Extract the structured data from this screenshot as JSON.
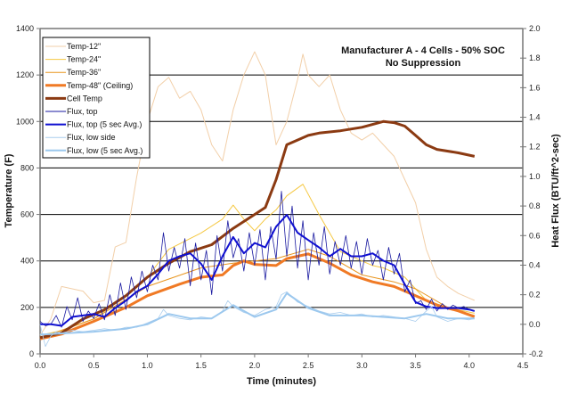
{
  "chart_data": {
    "type": "line",
    "title": "Manufacturer A - 4 Cells - 50% SOC",
    "subtitle": "No Suppression",
    "xlabel": "Time (minutes)",
    "ylabel": "Temperature (F)",
    "y2label": "Heat Flux (BTU/ft^2-sec)",
    "xlim": [
      0,
      4.5
    ],
    "ylim": [
      0,
      1400
    ],
    "y2lim": [
      -0.2,
      2.0
    ],
    "xticks": [
      "0.0",
      "0.5",
      "1.0",
      "1.5",
      "2.0",
      "2.5",
      "3.0",
      "3.5",
      "4.0",
      "4.5"
    ],
    "yticks": [
      "0",
      "200",
      "400",
      "600",
      "800",
      "1000",
      "1200",
      "1400"
    ],
    "y2ticks": [
      "-0.2",
      "0.0",
      "0.2",
      "0.4",
      "0.6",
      "0.8",
      "1.0",
      "1.2",
      "1.4",
      "1.6",
      "1.8",
      "2.0"
    ],
    "grid": "horizontal",
    "legend_position": "top-left",
    "series": [
      {
        "name": "Temp-12\"",
        "axis": "left",
        "color": "#f2cfa8",
        "width": 1,
        "x": [
          0,
          0.1,
          0.2,
          0.3,
          0.4,
          0.5,
          0.6,
          0.7,
          0.8,
          0.9,
          1.0,
          1.1,
          1.2,
          1.3,
          1.4,
          1.5,
          1.6,
          1.7,
          1.8,
          1.9,
          2.0,
          2.1,
          2.2,
          2.3,
          2.4,
          2.45,
          2.5,
          2.6,
          2.7,
          2.8,
          2.9,
          3.0,
          3.1,
          3.2,
          3.3,
          3.4,
          3.5,
          3.6,
          3.7,
          3.8,
          3.9,
          4.0,
          4.05
        ],
        "y": [
          80,
          150,
          290,
          280,
          270,
          220,
          230,
          460,
          480,
          760,
          1000,
          1150,
          1190,
          1100,
          1130,
          1050,
          900,
          830,
          1050,
          1200,
          1300,
          1200,
          900,
          1000,
          1180,
          1290,
          1200,
          1150,
          1200,
          1050,
          950,
          920,
          950,
          900,
          850,
          750,
          650,
          450,
          330,
          290,
          260,
          240,
          230
        ]
      },
      {
        "name": "Temp-24\"",
        "axis": "left",
        "color": "#f5c842",
        "width": 1,
        "x": [
          0,
          0.2,
          0.5,
          0.8,
          1.0,
          1.2,
          1.5,
          1.7,
          1.8,
          1.9,
          2.0,
          2.1,
          2.2,
          2.3,
          2.45,
          2.6,
          2.7,
          2.8,
          3.0,
          3.1,
          3.2,
          3.4,
          3.6,
          3.8,
          4.0,
          4.05
        ],
        "y": [
          80,
          100,
          150,
          250,
          330,
          450,
          520,
          580,
          640,
          580,
          530,
          580,
          620,
          680,
          730,
          600,
          520,
          440,
          400,
          380,
          370,
          330,
          230,
          200,
          180,
          175
        ]
      },
      {
        "name": "Temp-36\"",
        "axis": "left",
        "color": "#e8951e",
        "width": 1,
        "x": [
          0,
          0.5,
          1.0,
          1.5,
          1.8,
          2.0,
          2.2,
          2.5,
          2.7,
          3.0,
          3.3,
          3.5,
          3.8,
          4.05
        ],
        "y": [
          70,
          150,
          290,
          370,
          390,
          400,
          410,
          450,
          420,
          340,
          310,
          280,
          200,
          165
        ]
      },
      {
        "name": "Temp-48\" (Ceiling)",
        "axis": "left",
        "color": "#f07a25",
        "width": 3,
        "x": [
          0,
          0.2,
          0.5,
          0.8,
          1.0,
          1.3,
          1.5,
          1.7,
          1.8,
          1.9,
          2.0,
          2.2,
          2.3,
          2.5,
          2.7,
          2.9,
          3.1,
          3.3,
          3.5,
          3.7,
          3.9,
          4.05
        ],
        "y": [
          65,
          85,
          140,
          200,
          250,
          300,
          330,
          340,
          380,
          400,
          385,
          380,
          410,
          430,
          390,
          340,
          310,
          290,
          250,
          210,
          185,
          160
        ]
      },
      {
        "name": "Cell Temp",
        "axis": "left",
        "color": "#8b3a12",
        "width": 3,
        "x": [
          0,
          0.2,
          0.4,
          0.6,
          0.8,
          1.0,
          1.2,
          1.4,
          1.6,
          1.8,
          2.0,
          2.1,
          2.2,
          2.3,
          2.4,
          2.5,
          2.6,
          2.8,
          3.0,
          3.2,
          3.3,
          3.4,
          3.5,
          3.6,
          3.7,
          3.9,
          4.05
        ],
        "y": [
          70,
          90,
          150,
          190,
          250,
          330,
          390,
          440,
          470,
          540,
          600,
          630,
          750,
          900,
          920,
          940,
          950,
          960,
          975,
          1000,
          995,
          980,
          940,
          900,
          880,
          865,
          850
        ]
      },
      {
        "name": "Flux, top",
        "axis": "right",
        "color": "#1a1aa0",
        "width": 0.8,
        "x": [
          0,
          0.05,
          0.1,
          0.15,
          0.2,
          0.25,
          0.3,
          0.35,
          0.4,
          0.45,
          0.5,
          0.55,
          0.6,
          0.65,
          0.7,
          0.75,
          0.8,
          0.85,
          0.9,
          0.95,
          1.0,
          1.05,
          1.1,
          1.15,
          1.2,
          1.25,
          1.3,
          1.35,
          1.4,
          1.45,
          1.5,
          1.55,
          1.6,
          1.65,
          1.7,
          1.75,
          1.8,
          1.85,
          1.9,
          1.95,
          2.0,
          2.05,
          2.1,
          2.15,
          2.2,
          2.25,
          2.3,
          2.35,
          2.4,
          2.45,
          2.5,
          2.55,
          2.6,
          2.65,
          2.7,
          2.75,
          2.8,
          2.85,
          2.9,
          2.95,
          3.0,
          3.05,
          3.1,
          3.15,
          3.2,
          3.25,
          3.3,
          3.35,
          3.4,
          3.45,
          3.5,
          3.55,
          3.6,
          3.65,
          3.7,
          3.75,
          3.8,
          3.85,
          3.9,
          3.95,
          4.0,
          4.05
        ],
        "y": [
          0.02,
          -0.01,
          0.0,
          0.06,
          -0.02,
          0.12,
          0.03,
          0.18,
          0.02,
          0.09,
          0.04,
          0.14,
          0.03,
          0.2,
          0.06,
          0.28,
          0.1,
          0.32,
          0.18,
          0.36,
          0.22,
          0.4,
          0.3,
          0.62,
          0.36,
          0.52,
          0.38,
          0.58,
          0.26,
          0.55,
          0.3,
          0.5,
          0.2,
          0.6,
          0.36,
          0.7,
          0.45,
          0.58,
          0.36,
          0.62,
          0.4,
          0.64,
          0.3,
          0.66,
          0.44,
          0.9,
          0.46,
          0.8,
          0.38,
          0.7,
          0.3,
          0.62,
          0.4,
          0.66,
          0.34,
          0.56,
          0.4,
          0.6,
          0.38,
          0.56,
          0.34,
          0.58,
          0.4,
          0.5,
          0.3,
          0.52,
          0.34,
          0.48,
          0.22,
          0.3,
          0.14,
          0.16,
          0.1,
          0.17,
          0.09,
          0.14,
          0.1,
          0.13,
          0.11,
          0.12,
          0.1,
          0.09
        ]
      },
      {
        "name": "Flux, top (5 sec Avg.)",
        "axis": "right",
        "color": "#1010d0",
        "width": 2,
        "x": [
          0,
          0.1,
          0.2,
          0.3,
          0.4,
          0.5,
          0.6,
          0.7,
          0.8,
          0.9,
          1.0,
          1.1,
          1.2,
          1.3,
          1.4,
          1.5,
          1.6,
          1.7,
          1.8,
          1.9,
          2.0,
          2.1,
          2.2,
          2.3,
          2.4,
          2.5,
          2.6,
          2.7,
          2.8,
          2.9,
          3.0,
          3.1,
          3.2,
          3.3,
          3.4,
          3.5,
          3.6,
          3.7,
          3.8,
          3.9,
          4.0,
          4.05
        ],
        "y": [
          0.0,
          0.0,
          -0.01,
          0.05,
          0.06,
          0.07,
          0.05,
          0.11,
          0.16,
          0.22,
          0.26,
          0.34,
          0.43,
          0.46,
          0.48,
          0.41,
          0.3,
          0.46,
          0.59,
          0.48,
          0.55,
          0.52,
          0.66,
          0.74,
          0.62,
          0.57,
          0.52,
          0.46,
          0.51,
          0.46,
          0.46,
          0.48,
          0.43,
          0.4,
          0.27,
          0.15,
          0.12,
          0.11,
          0.11,
          0.11,
          0.1,
          0.09
        ]
      },
      {
        "name": "Flux, low side",
        "axis": "right",
        "color": "#a9cdee",
        "width": 0.8,
        "x": [
          0,
          0.05,
          0.1,
          0.15,
          0.2,
          0.3,
          0.4,
          0.5,
          0.6,
          0.7,
          0.8,
          0.9,
          1.0,
          1.1,
          1.15,
          1.2,
          1.3,
          1.4,
          1.5,
          1.6,
          1.7,
          1.75,
          1.8,
          1.9,
          2.0,
          2.1,
          2.2,
          2.25,
          2.3,
          2.4,
          2.5,
          2.6,
          2.7,
          2.8,
          2.9,
          3.0,
          3.1,
          3.2,
          3.3,
          3.4,
          3.5,
          3.6,
          3.65,
          3.7,
          3.8,
          3.9,
          4.0,
          4.05
        ],
        "y": [
          0.0,
          -0.15,
          -0.08,
          -0.05,
          -0.06,
          -0.04,
          -0.05,
          -0.04,
          -0.03,
          -0.04,
          -0.02,
          -0.02,
          0.01,
          0.04,
          0.1,
          0.06,
          0.04,
          0.03,
          0.05,
          0.04,
          0.09,
          0.16,
          0.12,
          0.08,
          0.06,
          0.1,
          0.12,
          0.2,
          0.22,
          0.15,
          0.12,
          0.09,
          0.07,
          0.08,
          0.06,
          0.07,
          0.05,
          0.06,
          0.05,
          0.04,
          0.02,
          0.09,
          0.12,
          0.05,
          0.02,
          0.04,
          0.03,
          0.04
        ]
      },
      {
        "name": "Flux, low (5 sec Avg.)",
        "axis": "right",
        "color": "#9cc8ee",
        "width": 2,
        "x": [
          0,
          0.5,
          0.8,
          1.0,
          1.2,
          1.4,
          1.6,
          1.8,
          2.0,
          2.2,
          2.3,
          2.5,
          2.7,
          3.0,
          3.4,
          3.6,
          3.8,
          4.05
        ],
        "y": [
          -0.07,
          -0.05,
          -0.03,
          0.0,
          0.07,
          0.04,
          0.04,
          0.13,
          0.05,
          0.1,
          0.21,
          0.11,
          0.06,
          0.06,
          0.04,
          0.07,
          0.04,
          0.04
        ]
      }
    ]
  }
}
